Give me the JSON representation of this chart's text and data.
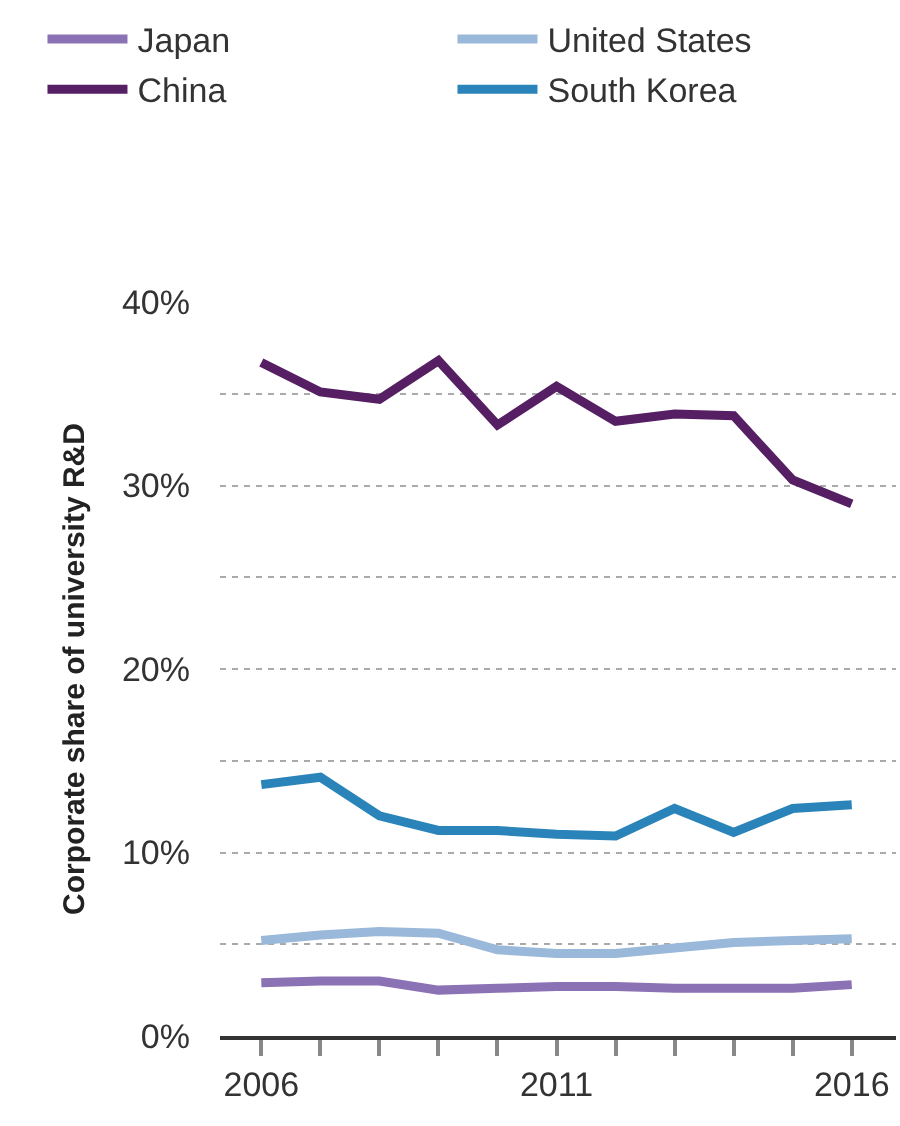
{
  "chart_data": {
    "type": "line",
    "ylabel": "Corporate share of university R&D",
    "x": [
      2006,
      2007,
      2008,
      2009,
      2010,
      2011,
      2012,
      2013,
      2014,
      2015,
      2016
    ],
    "series": [
      {
        "name": "Japan",
        "color": "#8b72b4",
        "values": [
          2.9,
          3.0,
          3.0,
          2.5,
          2.6,
          2.7,
          2.7,
          2.6,
          2.6,
          2.6,
          2.8
        ]
      },
      {
        "name": "United States",
        "color": "#9ab8d9",
        "values": [
          5.2,
          5.5,
          5.7,
          5.6,
          4.7,
          4.5,
          4.5,
          4.8,
          5.1,
          5.2,
          5.3
        ]
      },
      {
        "name": "China",
        "color": "#561f63",
        "values": [
          36.7,
          35.1,
          34.7,
          36.8,
          33.3,
          35.4,
          33.5,
          33.9,
          33.8,
          30.3,
          29.0
        ]
      },
      {
        "name": "South Korea",
        "color": "#2a84ba",
        "values": [
          13.7,
          14.1,
          12.0,
          11.2,
          11.2,
          11.0,
          10.9,
          12.4,
          11.1,
          12.4,
          12.6
        ]
      }
    ],
    "xlim": [
      2005.3,
      2016.75
    ],
    "xticks": [
      2006,
      {
        "value": 2007,
        "label": null
      },
      {
        "value": 2008,
        "label": null
      },
      {
        "value": 2009,
        "label": null
      },
      {
        "value": 2010,
        "label": null
      },
      2011,
      {
        "value": 2012,
        "label": null
      },
      {
        "value": 2013,
        "label": null
      },
      {
        "value": 2014,
        "label": null
      },
      {
        "value": 2015,
        "label": null
      },
      2016
    ],
    "ylim": [
      0,
      40
    ],
    "yticks": [
      {
        "value": 0,
        "label": "0%"
      },
      {
        "value": 5,
        "label": null
      },
      {
        "value": 10,
        "label": "10%"
      },
      {
        "value": 15,
        "label": null
      },
      {
        "value": 20,
        "label": "20%"
      },
      {
        "value": 25,
        "label": null
      },
      {
        "value": 30,
        "label": "30%"
      },
      {
        "value": 35,
        "label": null
      },
      {
        "value": 40,
        "label": "40%"
      }
    ],
    "grid": "y",
    "legend": "top",
    "marker": "none",
    "line_style": "solid"
  }
}
